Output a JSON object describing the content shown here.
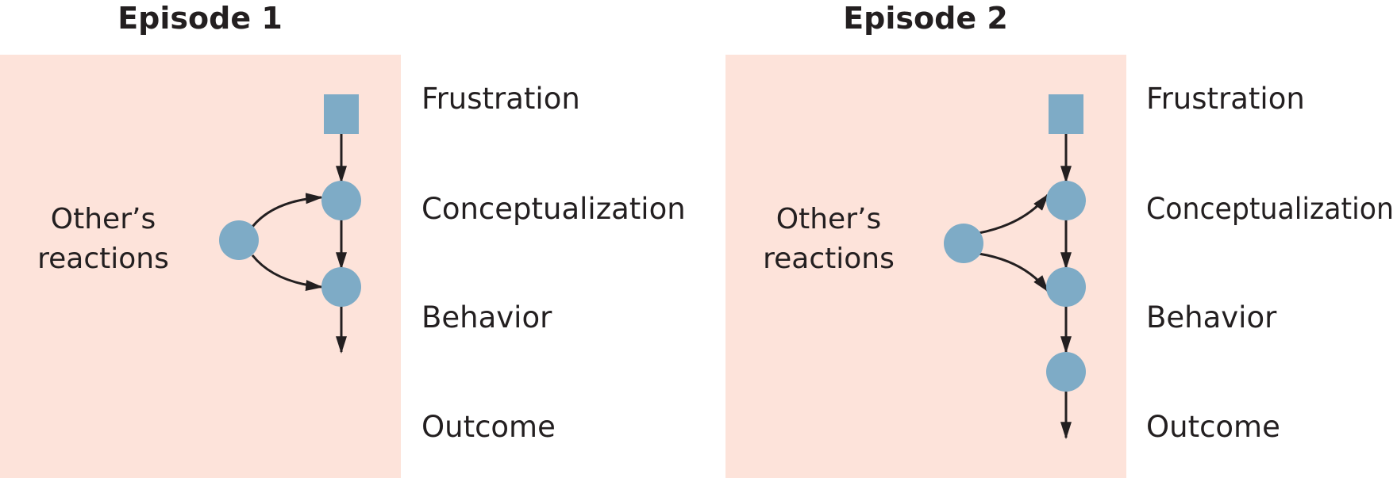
{
  "episodes": [
    {
      "title": "Episode 1",
      "side_label_line1": "Other’s",
      "side_label_line2": "reactions",
      "stages": {
        "frustration": "Frustration",
        "conceptualization": "Conceptualization",
        "behavior": "Behavior",
        "outcome": "Outcome"
      }
    },
    {
      "title": "Episode 2",
      "side_label_line1": "Other’s",
      "side_label_line2": "reactions",
      "stages": {
        "frustration": "Frustration",
        "conceptualization": "Conceptualization",
        "behavior": "Behavior",
        "outcome": "Outcome"
      }
    }
  ],
  "colors": {
    "panel": "#fde3da",
    "node": "#7eabc6",
    "line": "#231f20"
  }
}
